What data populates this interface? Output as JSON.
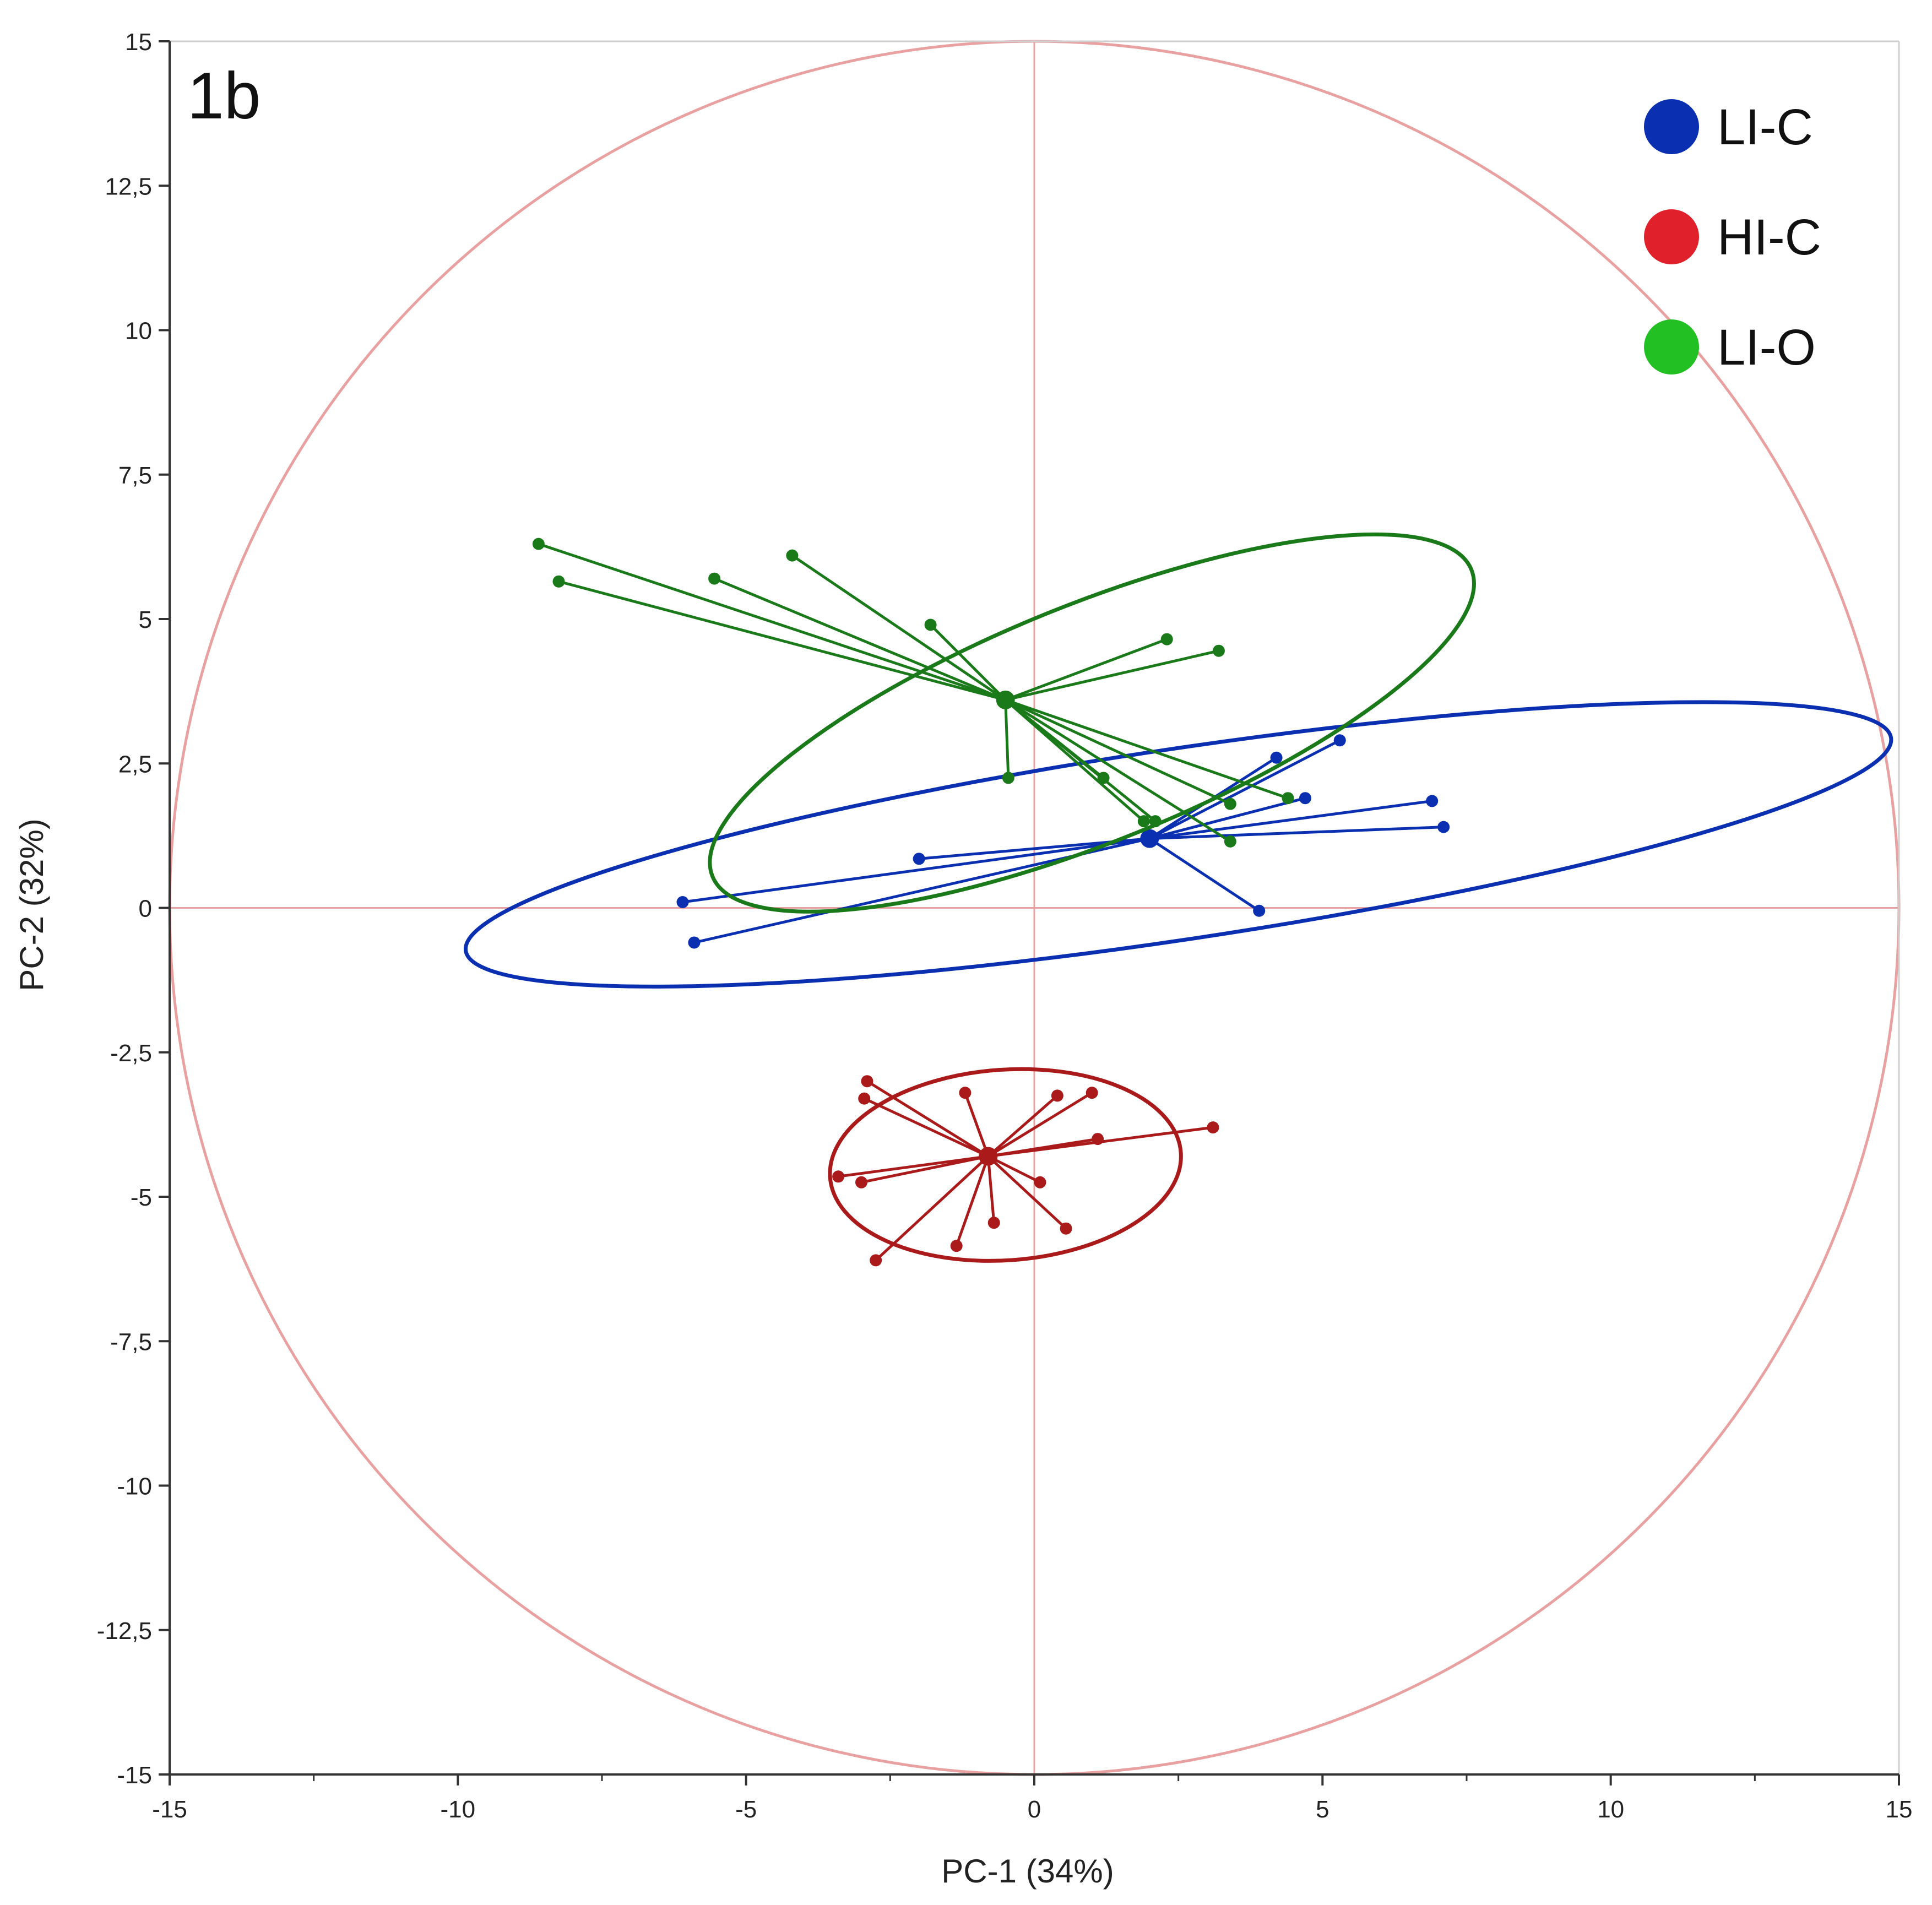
{
  "chart_data": {
    "type": "scatter",
    "panel_label": "1b",
    "xlabel": "PC-1 (34%)",
    "ylabel": "PC-2 (32%)",
    "xlim": [
      -15,
      15
    ],
    "ylim": [
      -15,
      15
    ],
    "x_ticks": [
      -15,
      -10,
      -5,
      0,
      5,
      10,
      15
    ],
    "x_tick_labels": [
      "-15",
      "-10",
      "-5",
      "0",
      "5",
      "10",
      "15"
    ],
    "y_ticks": [
      15,
      12.5,
      10,
      7.5,
      5,
      2.5,
      0,
      -2.5,
      -5,
      -7.5,
      -10,
      -12.5,
      -15
    ],
    "y_tick_labels": [
      "15",
      "12,5",
      "10",
      "7,5",
      "5",
      "2,5",
      "0",
      "-2,5",
      "-5",
      "-7,5",
      "-10",
      "-12,5",
      "-15"
    ],
    "grid": false,
    "legend_position": "top-right",
    "reference_circle": {
      "radius": 15,
      "color": "#e8a0a0"
    },
    "series": [
      {
        "name": "LI-C",
        "color": "#0a2fb0",
        "centroid": [
          2.0,
          1.2
        ],
        "ellipse": {
          "cx": 2.5,
          "cy": 1.1,
          "rx": 12.5,
          "ry": 1.65,
          "rotation_deg": 8.5
        },
        "points": [
          [
            4.2,
            2.6
          ],
          [
            5.3,
            2.9
          ],
          [
            4.7,
            1.9
          ],
          [
            6.9,
            1.85
          ],
          [
            7.1,
            1.4
          ],
          [
            3.9,
            -0.05
          ],
          [
            -2.0,
            0.85
          ],
          [
            -6.1,
            0.1
          ],
          [
            -5.9,
            -0.6
          ]
        ]
      },
      {
        "name": "HI-C",
        "color": "#aa1a1a",
        "centroid": [
          -0.8,
          -4.3
        ],
        "ellipse": {
          "cx": -0.5,
          "cy": -4.45,
          "rx": 3.05,
          "ry": 1.65,
          "rotation_deg": 4
        },
        "points": [
          [
            -2.9,
            -3.0
          ],
          [
            -2.95,
            -3.3
          ],
          [
            -1.2,
            -3.2
          ],
          [
            0.4,
            -3.25
          ],
          [
            1.0,
            -3.2
          ],
          [
            1.1,
            -4.0
          ],
          [
            3.1,
            -3.8
          ],
          [
            -3.4,
            -4.65
          ],
          [
            -3.0,
            -4.75
          ],
          [
            0.1,
            -4.75
          ],
          [
            -0.7,
            -5.45
          ],
          [
            0.55,
            -5.55
          ],
          [
            -1.35,
            -5.85
          ],
          [
            -2.75,
            -6.1
          ]
        ]
      },
      {
        "name": "LI-O",
        "color": "#1a7a1a",
        "centroid": [
          -0.5,
          3.6
        ],
        "ellipse": {
          "cx": 1.0,
          "cy": 3.2,
          "rx": 7.1,
          "ry": 2.05,
          "rotation_deg": 22
        },
        "points": [
          [
            -8.6,
            6.3
          ],
          [
            -8.25,
            5.65
          ],
          [
            -5.55,
            5.7
          ],
          [
            -4.2,
            6.1
          ],
          [
            -1.8,
            4.9
          ],
          [
            2.3,
            4.65
          ],
          [
            3.2,
            4.45
          ],
          [
            -0.45,
            2.25
          ],
          [
            1.2,
            2.25
          ],
          [
            1.9,
            1.5
          ],
          [
            2.1,
            1.5
          ],
          [
            3.4,
            1.8
          ],
          [
            4.4,
            1.9
          ],
          [
            3.4,
            1.15
          ]
        ]
      }
    ]
  }
}
